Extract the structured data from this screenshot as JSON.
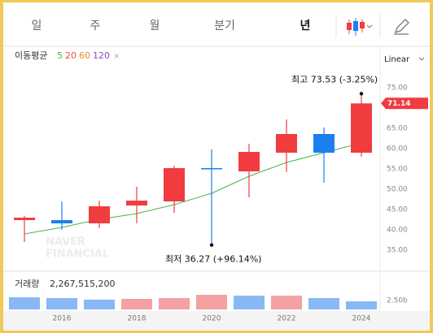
{
  "tabs": [
    "일",
    "주",
    "월",
    "분기",
    "년"
  ],
  "selected_tab": 4,
  "chart_data": {
    "type": "candlestick",
    "categories": [
      null,
      "2016",
      null,
      "2018",
      null,
      "2020",
      null,
      "2022",
      null,
      "2024"
    ],
    "open": [
      42.4,
      42.4,
      41.6,
      46.0,
      47.0,
      55.2,
      54.4,
      59.0,
      63.6,
      59.0
    ],
    "high": [
      43.4,
      47.0,
      47.2,
      50.6,
      55.8,
      59.8,
      61.2,
      67.2,
      65.2,
      73.53
    ],
    "low": [
      37.0,
      40.0,
      40.4,
      41.6,
      44.2,
      36.27,
      48.0,
      54.2,
      51.6,
      58.0
    ],
    "close": [
      43.0,
      41.6,
      45.8,
      47.2,
      55.2,
      55.0,
      59.2,
      63.6,
      59.0,
      71.14
    ],
    "up_color": "#f03c3f",
    "down_color": "#1b7ff0",
    "ylim": [
      30.6,
      79.6
    ],
    "yticks": [
      {
        "value": 35,
        "label": "35.00"
      },
      {
        "value": 40,
        "label": "40.00"
      },
      {
        "value": 45,
        "label": "45.00"
      },
      {
        "value": 50,
        "label": "50.00"
      },
      {
        "value": 55,
        "label": "55.00"
      },
      {
        "value": 60,
        "label": "60.00"
      },
      {
        "value": 65,
        "label": "65.00"
      },
      {
        "value": 75,
        "label": "75.00"
      }
    ],
    "scale": "Linear",
    "ma_title": "이동평균",
    "moving_averages": [
      {
        "name": "5",
        "color": "#48b34a",
        "values": [
          39.0,
          40.6,
          42.6,
          44.0,
          46.2,
          49.0,
          53.2,
          56.6,
          59.0,
          61.4
        ]
      },
      {
        "name": "20",
        "color": "#e8513f"
      },
      {
        "name": "60",
        "color": "#ef8a2b"
      },
      {
        "name": "120",
        "color": "#8a4cc0"
      }
    ],
    "annotations": [
      {
        "text": "최고 73.53 (-3.25%)",
        "index": 9,
        "value": 73.53
      },
      {
        "text": "최저 36.27 (+96.14%)",
        "index": 5,
        "value": 36.27
      }
    ],
    "watermark": [
      "NAVER",
      "FINANCIAL"
    ],
    "volume": {
      "title": "거래량",
      "values": [
        3410000000,
        3180000000,
        2730000000,
        2950000000,
        3180000000,
        4090000000,
        3860000000,
        3860000000,
        3180000000,
        2267515200
      ],
      "value_labels": [
        null,
        null,
        null,
        null,
        null,
        null,
        null,
        null,
        null,
        "2,267,515,200"
      ],
      "colors": [
        "#8ab8f5",
        "#8ab8f5",
        "#8ab8f5",
        "#f5a0a2",
        "#f5a0a2",
        "#f5a0a2",
        "#8ab8f5",
        "#f5a0a2",
        "#8ab8f5",
        "#8ab8f5"
      ],
      "ylim": [
        0,
        9300000000
      ],
      "yticks": [
        {
          "value": 2500000000,
          "label": "2.50b"
        }
      ]
    }
  }
}
